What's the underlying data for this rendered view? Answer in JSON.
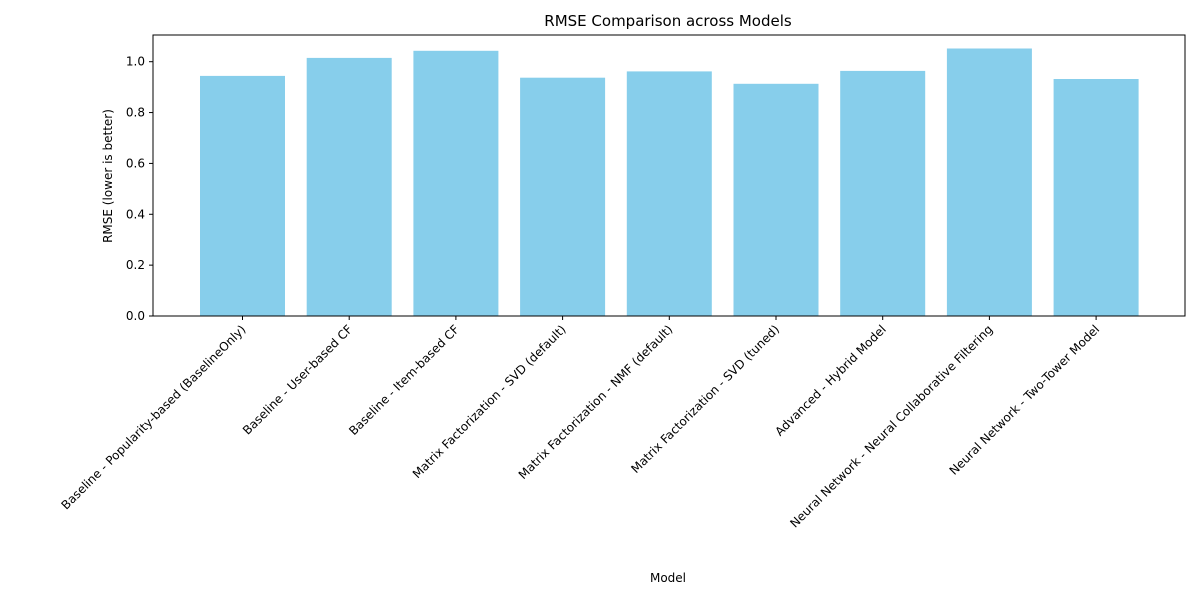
{
  "chart_data": {
    "type": "bar",
    "title": "RMSE Comparison across Models",
    "xlabel": "Model",
    "ylabel": "RMSE (lower is better)",
    "categories": [
      "Baseline - Popularity-based (BaselineOnly)",
      "Baseline - User-based CF",
      "Baseline - Item-based CF",
      "Matrix Factorization - SVD (default)",
      "Matrix Factorization - NMF (default)",
      "Matrix Factorization - SVD (tuned)",
      "Advanced - Hybrid Model",
      "Neural Network - Neural Collaborative Filtering",
      "Neural Network - Two-Tower Model"
    ],
    "values": [
      0.944,
      1.015,
      1.043,
      0.937,
      0.962,
      0.913,
      0.964,
      1.052,
      0.932
    ],
    "ylim": [
      0,
      1.105
    ],
    "yticks": [
      "0.0",
      "0.2",
      "0.4",
      "0.6",
      "0.8",
      "1.0"
    ],
    "bar_color": "#87CEEB",
    "grid": false,
    "legend": false
  }
}
